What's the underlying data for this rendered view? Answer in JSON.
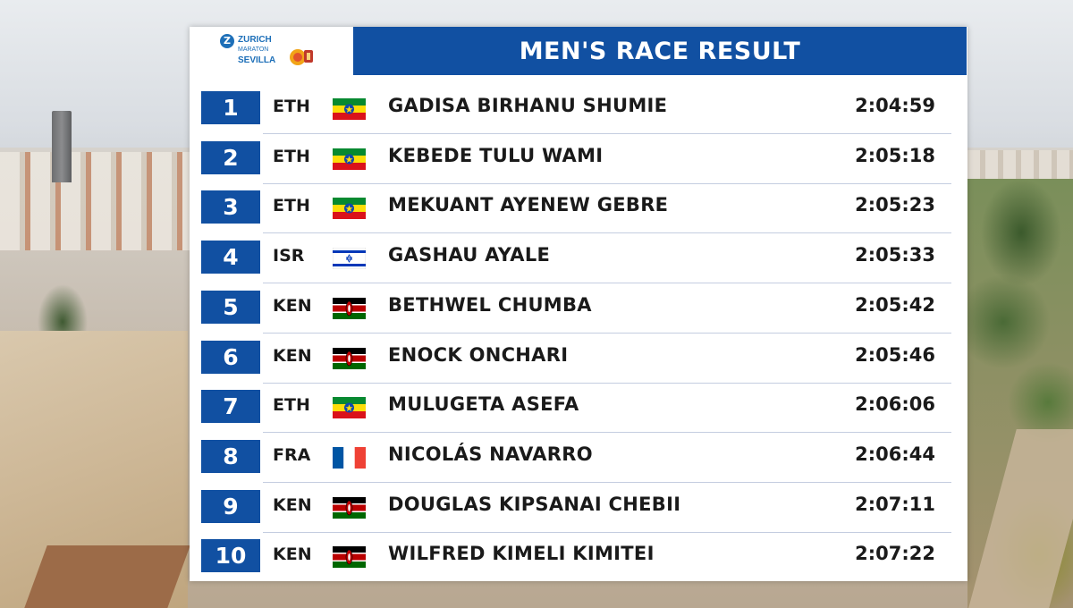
{
  "logo": {
    "brand": "ZURICH",
    "event_line1": "MARATON",
    "event_line2": "SEVILLA"
  },
  "title": "MEN'S RACE RESULT",
  "results": [
    {
      "rank": "1",
      "country": "ETH",
      "flag": "ethiopia-flag",
      "name": "GADISA BIRHANU SHUMIE",
      "time": "2:04:59"
    },
    {
      "rank": "2",
      "country": "ETH",
      "flag": "ethiopia-flag",
      "name": "KEBEDE TULU WAMI",
      "time": "2:05:18"
    },
    {
      "rank": "3",
      "country": "ETH",
      "flag": "ethiopia-flag",
      "name": "MEKUANT AYENEW GEBRE",
      "time": "2:05:23"
    },
    {
      "rank": "4",
      "country": "ISR",
      "flag": "israel-flag",
      "name": "GASHAU AYALE",
      "time": "2:05:33"
    },
    {
      "rank": "5",
      "country": "KEN",
      "flag": "kenya-flag",
      "name": "BETHWEL CHUMBA",
      "time": "2:05:42"
    },
    {
      "rank": "6",
      "country": "KEN",
      "flag": "kenya-flag",
      "name": "ENOCK ONCHARI",
      "time": "2:05:46"
    },
    {
      "rank": "7",
      "country": "ETH",
      "flag": "ethiopia-flag",
      "name": "MULUGETA ASEFA",
      "time": "2:06:06"
    },
    {
      "rank": "8",
      "country": "FRA",
      "flag": "france-flag",
      "name": "NICOLÁS NAVARRO",
      "time": "2:06:44"
    },
    {
      "rank": "9",
      "country": "KEN",
      "flag": "kenya-flag",
      "name": "DOUGLAS KIPSANAI CHEBII",
      "time": "2:07:11"
    },
    {
      "rank": "10",
      "country": "KEN",
      "flag": "kenya-flag",
      "name": "WILFRED KIMELI KIMITEI",
      "time": "2:07:22"
    }
  ],
  "colors": {
    "accent_blue": "#1150a2",
    "text": "#1a1a1a",
    "panel": "#ffffff"
  }
}
